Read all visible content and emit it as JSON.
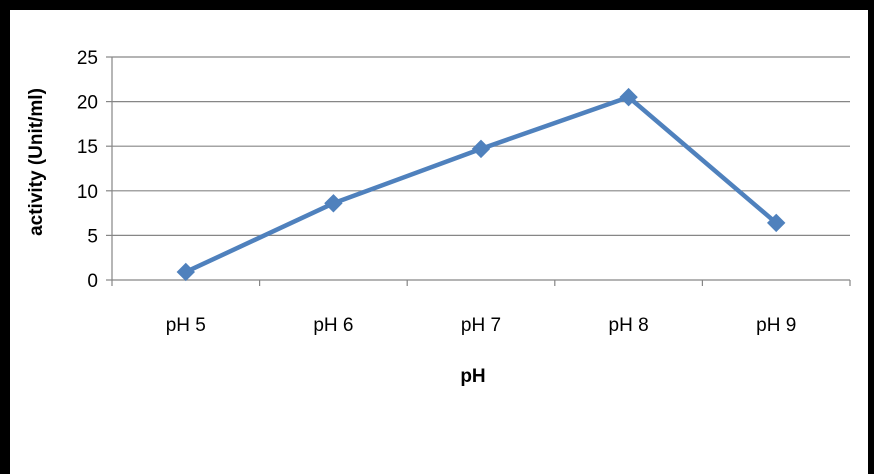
{
  "chart_data": {
    "type": "line",
    "title": "",
    "xlabel": "pH",
    "ylabel": "activity (Unit/ml)",
    "categories": [
      "pH 5",
      "pH 6",
      "pH 7",
      "pH 8",
      "pH 9"
    ],
    "series": [
      {
        "values": [
          0.9,
          8.6,
          14.7,
          20.5,
          6.4
        ],
        "color": "#4f81bd",
        "marker": "diamond"
      }
    ],
    "ylim": [
      0,
      25
    ],
    "yticks": [
      "0",
      "5",
      "10",
      "15",
      "20",
      "25"
    ],
    "grid": true,
    "legend": "none"
  }
}
